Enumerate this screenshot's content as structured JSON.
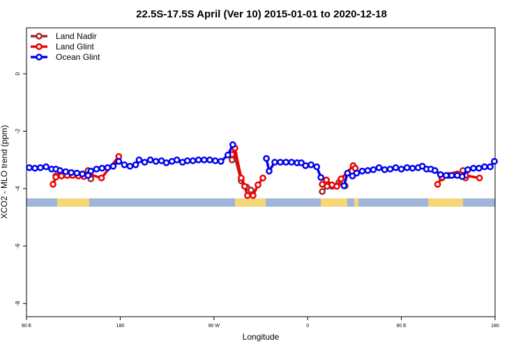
{
  "chart_data": {
    "type": "line",
    "title": "22.5S-17.5S April (Ver 10)   2015-01-01 to 2020-12-18",
    "x_label": "Longitude",
    "y_label": "XCO2 - MLO trend (ppm)",
    "xlim": [
      90,
      540
    ],
    "xticks": [
      {
        "value": 90,
        "label": "90 E"
      },
      180,
      {
        "value": 270,
        "label": "90 W"
      },
      {
        "value": 360,
        "label": "0"
      },
      {
        "value": 450,
        "label": "90 E"
      },
      {
        "value": 540,
        "label": "180"
      }
    ],
    "ylim": [
      -8.46,
      1.6
    ],
    "yticks": [
      -8,
      -6,
      -4,
      -2,
      0
    ],
    "legend": "top-left",
    "series": [
      {
        "name": "Land Nadir",
        "color": "#a52a2a",
        "x": [
          118.2,
          123.6,
          131,
          138,
          144,
          149.1,
          151.8,
          null,
          287.4,
          289.4,
          296.2,
          301.5,
          305.6,
          null,
          374,
          378.7,
          383.4,
          390,
          396,
          null,
          488.9,
          495.6,
          503.7,
          509,
          511.7
        ],
        "values": [
          -3.56,
          -3.51,
          -3.51,
          -3.51,
          -3.49,
          -3.37,
          -3.66,
          null,
          -3.0,
          -2.79,
          -3.73,
          -3.95,
          -4.05,
          null,
          -4.1,
          -3.92,
          -3.92,
          -3.78,
          -3.9,
          null,
          -3.63,
          -3.54,
          -3.49,
          -3.37,
          -3.63
        ]
      },
      {
        "name": "Land Glint",
        "color": "#ee0000",
        "x": [
          115.5,
          118.2,
          123.6,
          129,
          134.3,
          139.7,
          145.1,
          150.4,
          162,
          178.6,
          null,
          287.4,
          290.1,
          296.2,
          299.5,
          302.2,
          307.6,
          312.3,
          317,
          null,
          374,
          378,
          383.4,
          388,
          392.1,
          403.7,
          405.7,
          null,
          484.8,
          488.9,
          495.6,
          501,
          506.4,
          511.7,
          525
        ],
        "values": [
          -3.85,
          -3.6,
          -3.56,
          -3.54,
          -3.54,
          -3.56,
          -3.58,
          -3.5,
          -3.63,
          -2.88,
          null,
          -2.81,
          -2.59,
          -3.63,
          -3.92,
          -4.24,
          -4.24,
          -3.87,
          -3.63,
          null,
          -3.85,
          -3.7,
          -3.87,
          -3.92,
          -3.66,
          -3.2,
          -3.29,
          null,
          -3.85,
          -3.61,
          -3.54,
          -3.51,
          -3.51,
          -3.54,
          -3.63
        ]
      },
      {
        "name": "Ocean Glint",
        "color": "#0000ee",
        "x": [
          92.7,
          98.1,
          103.4,
          108.8,
          114.2,
          118.2,
          122.2,
          127.6,
          133,
          138.4,
          143.7,
          149.1,
          151.8,
          157.2,
          162.5,
          167.9,
          173.3,
          178.6,
          184,
          189.4,
          194.8,
          198.1,
          203.5,
          208.9,
          214.2,
          219.6,
          224.3,
          229.7,
          234.4,
          239.8,
          244.5,
          249.8,
          255.2,
          260.6,
          266,
          271.3,
          276.7,
          283.4,
          288.1,
          null,
          320.4,
          323,
          328.4,
          333.8,
          339.2,
          344.5,
          349.9,
          353.9,
          358,
          363.3,
          368.7,
          372.7,
          null,
          394.9,
          398.3,
          403,
          407,
          412.4,
          417.7,
          423.1,
          428.5,
          433.9,
          439.2,
          444.6,
          450,
          455.4,
          460.7,
          466.1,
          470.1,
          474.2,
          478.2,
          482.2,
          487.6,
          493,
          498.3,
          503.7,
          508.4,
          513.8,
          519.2,
          524.5,
          529.9,
          535.3,
          539.3
        ],
        "values": [
          -3.27,
          -3.29,
          -3.27,
          -3.24,
          -3.32,
          -3.32,
          -3.37,
          -3.41,
          -3.44,
          -3.46,
          -3.49,
          -3.54,
          -3.39,
          -3.32,
          -3.29,
          -3.27,
          -3.22,
          -3.05,
          -3.17,
          -3.22,
          -3.17,
          -3.0,
          -3.08,
          -3.0,
          -3.05,
          -3.03,
          -3.1,
          -3.05,
          -3.0,
          -3.08,
          -3.03,
          -3.03,
          -3.0,
          -3.0,
          -3.0,
          -3.03,
          -3.05,
          -2.83,
          -2.47,
          null,
          -2.95,
          -3.39,
          -3.08,
          -3.08,
          -3.08,
          -3.08,
          -3.1,
          -3.1,
          -3.2,
          -3.17,
          -3.24,
          -3.61,
          null,
          -3.9,
          -3.46,
          -3.56,
          -3.46,
          -3.39,
          -3.37,
          -3.34,
          -3.27,
          -3.34,
          -3.32,
          -3.27,
          -3.32,
          -3.27,
          -3.29,
          -3.27,
          -3.22,
          -3.32,
          -3.32,
          -3.37,
          -3.51,
          -3.54,
          -3.54,
          -3.54,
          -3.58,
          -3.34,
          -3.29,
          -3.29,
          -3.24,
          -3.24,
          -3.05
        ]
      }
    ]
  }
}
